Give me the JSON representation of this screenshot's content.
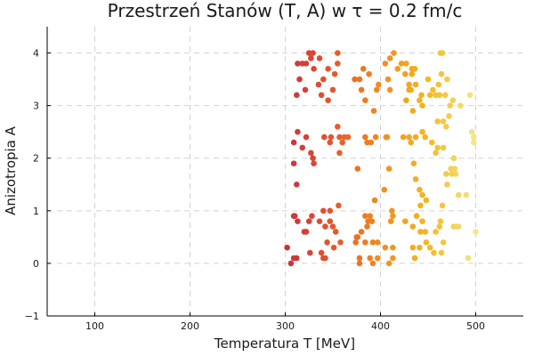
{
  "chart_data": {
    "type": "scatter",
    "title": "Przestrzeń Stanów (T, A) w τ = 0.2 fm/c",
    "xlabel": "Temperatura T [MeV]",
    "ylabel": "Anizotropia A",
    "xlim": [
      50,
      550
    ],
    "ylim": [
      -1,
      4.5
    ],
    "x_ticks": [
      100,
      200,
      300,
      400,
      500
    ],
    "y_ticks": [
      -1,
      0,
      1,
      2,
      3,
      4
    ],
    "x_tick_labels": [
      "100",
      "200",
      "300",
      "400",
      "500"
    ],
    "y_tick_labels": [
      "−1",
      "0",
      "1",
      "2",
      "3",
      "4"
    ],
    "grid": true,
    "legend": "none",
    "colormap": [
      "#c8313f",
      "#e6562c",
      "#f08c1e",
      "#f5b820",
      "#f2e88a"
    ],
    "color_range": [
      300,
      500
    ],
    "points": [
      [
        325,
        4.0
      ],
      [
        327,
        3.9
      ],
      [
        322,
        3.8
      ],
      [
        318,
        3.8
      ],
      [
        313,
        3.8
      ],
      [
        330,
        3.7
      ],
      [
        315,
        3.5
      ],
      [
        340,
        3.5
      ],
      [
        335,
        3.4
      ],
      [
        321,
        3.3
      ],
      [
        312,
        3.2
      ],
      [
        338,
        3.2
      ],
      [
        345,
        3.1
      ],
      [
        350,
        3.3
      ],
      [
        352,
        3.6
      ],
      [
        355,
        4.0
      ],
      [
        355,
        3.8
      ],
      [
        345,
        3.7
      ],
      [
        336,
        3.9
      ],
      [
        329,
        4.0
      ],
      [
        309,
        2.3
      ],
      [
        313,
        2.5
      ],
      [
        322,
        2.4
      ],
      [
        327,
        2.1
      ],
      [
        329,
        2.0
      ],
      [
        330,
        1.9
      ],
      [
        318,
        2.2
      ],
      [
        309,
        1.9
      ],
      [
        341,
        2.4
      ],
      [
        347,
        2.3
      ],
      [
        348,
        2.4
      ],
      [
        355,
        2.6
      ],
      [
        357,
        2.4
      ],
      [
        360,
        2.3
      ],
      [
        362,
        2.4
      ],
      [
        366,
        2.4
      ],
      [
        357,
        2.1
      ],
      [
        312,
        1.5
      ],
      [
        309,
        0.9
      ],
      [
        310,
        0.9
      ],
      [
        313,
        0.8
      ],
      [
        325,
        0.8
      ],
      [
        328,
        0.9
      ],
      [
        322,
        0.6
      ],
      [
        320,
        0.6
      ],
      [
        336,
        0.8
      ],
      [
        342,
        0.7
      ],
      [
        347,
        0.8
      ],
      [
        350,
        0.7
      ],
      [
        353,
        0.6
      ],
      [
        356,
        1.1
      ],
      [
        347,
        1.0
      ],
      [
        340,
        1.0
      ],
      [
        344,
        0.4
      ],
      [
        342,
        0.1
      ],
      [
        338,
        0.2
      ],
      [
        340,
        0.1
      ],
      [
        351,
        0.3
      ],
      [
        358,
        0.4
      ],
      [
        326,
        0.2
      ],
      [
        309,
        0.1
      ],
      [
        312,
        0.1
      ],
      [
        306,
        0.0
      ],
      [
        302,
        0.3
      ],
      [
        373,
        3.5
      ],
      [
        378,
        3.5
      ],
      [
        380,
        3.3
      ],
      [
        382,
        3.7
      ],
      [
        384,
        3.1
      ],
      [
        388,
        3.6
      ],
      [
        393,
        2.9
      ],
      [
        396,
        3.3
      ],
      [
        398,
        3.4
      ],
      [
        395,
        2.4
      ],
      [
        390,
        2.3
      ],
      [
        386,
        2.3
      ],
      [
        384,
        2.4
      ],
      [
        376,
        1.8
      ],
      [
        394,
        1.2
      ],
      [
        389,
        0.9
      ],
      [
        391,
        0.8
      ],
      [
        387,
        0.8
      ],
      [
        384,
        0.9
      ],
      [
        386,
        0.7
      ],
      [
        380,
        0.6
      ],
      [
        376,
        0.5
      ],
      [
        374,
        0.4
      ],
      [
        375,
        0.5
      ],
      [
        384,
        0.4
      ],
      [
        378,
        0.1
      ],
      [
        378,
        0.0
      ],
      [
        389,
        0.1
      ],
      [
        392,
        0.0
      ],
      [
        397,
        0.1
      ],
      [
        397,
        0.4
      ],
      [
        392,
        0.4
      ],
      [
        405,
        3.8
      ],
      [
        408,
        3.5
      ],
      [
        410,
        3.9
      ],
      [
        414,
        4.0
      ],
      [
        410,
        3.3
      ],
      [
        406,
        2.4
      ],
      [
        407,
        2.4
      ],
      [
        409,
        1.8
      ],
      [
        404,
        1.4
      ],
      [
        412,
        1.0
      ],
      [
        413,
        0.9
      ],
      [
        411,
        0.8
      ],
      [
        413,
        0.3
      ],
      [
        413,
        0.1
      ],
      [
        409,
        0.0
      ],
      [
        405,
        0.3
      ],
      [
        418,
        3.7
      ],
      [
        422,
        3.8
      ],
      [
        426,
        3.6
      ],
      [
        427,
        3.8
      ],
      [
        430,
        3.4
      ],
      [
        433,
        3.7
      ],
      [
        433,
        3.6
      ],
      [
        436,
        3.7
      ],
      [
        437,
        3.4
      ],
      [
        427,
        3.1
      ],
      [
        430,
        3.3
      ],
      [
        432,
        3.3
      ],
      [
        434,
        2.9
      ],
      [
        441,
        3.1
      ],
      [
        444,
        3.0
      ],
      [
        443,
        3.2
      ],
      [
        424,
        2.4
      ],
      [
        430,
        2.4
      ],
      [
        432,
        2.3
      ],
      [
        437,
        2.4
      ],
      [
        444,
        2.5
      ],
      [
        447,
        2.4
      ],
      [
        435,
        1.9
      ],
      [
        437,
        1.6
      ],
      [
        441,
        1.4
      ],
      [
        444,
        1.3
      ],
      [
        448,
        1.2
      ],
      [
        442,
        1.1
      ],
      [
        426,
        0.8
      ],
      [
        434,
        0.7
      ],
      [
        438,
        0.9
      ],
      [
        444,
        0.8
      ],
      [
        442,
        0.6
      ],
      [
        447,
        0.6
      ],
      [
        448,
        0.4
      ],
      [
        434,
        0.3
      ],
      [
        436,
        0.1
      ],
      [
        441,
        0.3
      ],
      [
        452,
        0.3
      ],
      [
        456,
        0.2
      ],
      [
        450,
        3.5
      ],
      [
        452,
        3.2
      ],
      [
        455,
        3.3
      ],
      [
        458,
        3.2
      ],
      [
        461,
        3.4
      ],
      [
        464,
        3.6
      ],
      [
        462,
        3.2
      ],
      [
        463,
        4.0
      ],
      [
        465,
        4.0
      ],
      [
        468,
        3.2
      ],
      [
        470,
        3.5
      ],
      [
        460,
        2.7
      ],
      [
        466,
        2.7
      ],
      [
        469,
        2.6
      ],
      [
        472,
        2.8
      ],
      [
        476,
        3.1
      ],
      [
        473,
        3.0
      ],
      [
        484,
        3.0
      ],
      [
        494,
        3.2
      ],
      [
        454,
        2.3
      ],
      [
        458,
        2.1
      ],
      [
        460,
        2.2
      ],
      [
        466,
        2.2
      ],
      [
        474,
        1.8
      ],
      [
        478,
        1.8
      ],
      [
        477,
        2.0
      ],
      [
        475,
        1.7
      ],
      [
        479,
        1.7
      ],
      [
        469,
        1.7
      ],
      [
        470,
        1.5
      ],
      [
        465,
        1.1
      ],
      [
        482,
        1.3
      ],
      [
        490,
        1.3
      ],
      [
        463,
        0.8
      ],
      [
        458,
        0.6
      ],
      [
        466,
        0.4
      ],
      [
        464,
        0.2
      ],
      [
        462,
        0.7
      ],
      [
        477,
        0.7
      ],
      [
        480,
        0.7
      ],
      [
        482,
        0.7
      ],
      [
        492,
        0.1
      ],
      [
        500,
        0.6
      ],
      [
        496,
        2.5
      ],
      [
        498,
        2.4
      ],
      [
        498,
        2.3
      ]
    ]
  }
}
